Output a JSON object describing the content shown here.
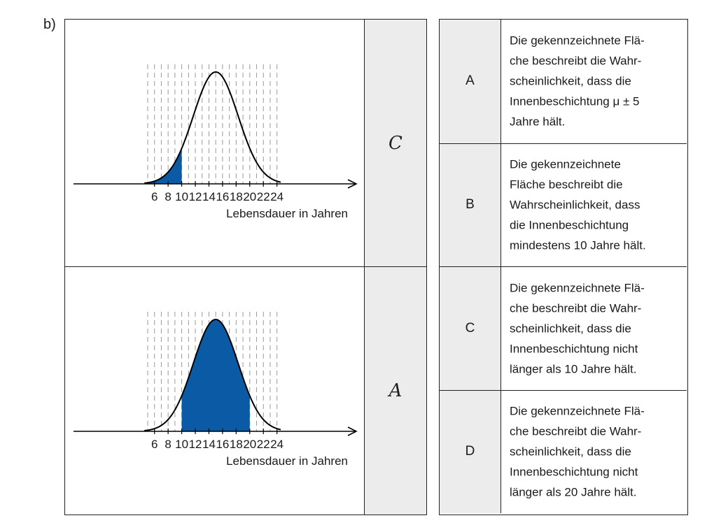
{
  "part_label": "b)",
  "charts": [
    {
      "answer": "C",
      "xlabel": "Lebensdauer in Jahren",
      "ticks": [
        "6",
        "8",
        "10",
        "12",
        "14",
        "16",
        "18",
        "20",
        "22",
        "24"
      ],
      "shaded_from": 5,
      "shaded_to": 10
    },
    {
      "answer": "A",
      "xlabel": "Lebensdauer in Jahren",
      "ticks": [
        "6",
        "8",
        "10",
        "12",
        "14",
        "16",
        "18",
        "20",
        "22",
        "24"
      ],
      "shaded_from": 10,
      "shaded_to": 20
    }
  ],
  "chart_data": [
    {
      "type": "area",
      "distribution": "normal",
      "mean": 15,
      "std": 3.3,
      "xlim": [
        4.5,
        25
      ],
      "xlabel": "Lebensdauer in Jahren",
      "x_ticks": [
        6,
        8,
        10,
        12,
        14,
        16,
        18,
        20,
        22,
        24
      ],
      "shaded_interval": [
        5,
        10
      ],
      "grid": "vertical dashed",
      "colors": {
        "curve": "#000000",
        "fill": "#0a5aa6",
        "grid": "#9a9a9a"
      }
    },
    {
      "type": "area",
      "distribution": "normal",
      "mean": 15,
      "std": 3.3,
      "xlim": [
        4.5,
        25
      ],
      "xlabel": "Lebensdauer in Jahren",
      "x_ticks": [
        6,
        8,
        10,
        12,
        14,
        16,
        18,
        20,
        22,
        24
      ],
      "shaded_interval": [
        10,
        20
      ],
      "grid": "vertical dashed",
      "colors": {
        "curve": "#000000",
        "fill": "#0a5aa6",
        "grid": "#9a9a9a"
      }
    }
  ],
  "options": [
    {
      "letter": "A",
      "lines": [
        "Die gekennzeichnete Flä-",
        "che beschreibt die Wahr-",
        "scheinlichkeit, dass die",
        "Innenbeschichtung μ ± 5",
        "Jahre hält."
      ]
    },
    {
      "letter": "B",
      "lines": [
        "Die gekennzeichnete",
        "Fläche beschreibt die",
        "Wahrscheinlichkeit, dass",
        "die Innenbeschichtung",
        "mindestens 10 Jahre hält."
      ]
    },
    {
      "letter": "C",
      "lines": [
        "Die gekennzeichnete Flä-",
        "che beschreibt die Wahr-",
        "scheinlichkeit, dass die",
        "Innenbeschichtung nicht",
        "länger als 10 Jahre hält."
      ]
    },
    {
      "letter": "D",
      "lines": [
        "Die gekennzeichnete Flä-",
        "che beschreibt die Wahr-",
        "scheinlichkeit, dass die",
        "Innenbeschichtung nicht",
        "länger als 20 Jahre hält."
      ]
    }
  ]
}
